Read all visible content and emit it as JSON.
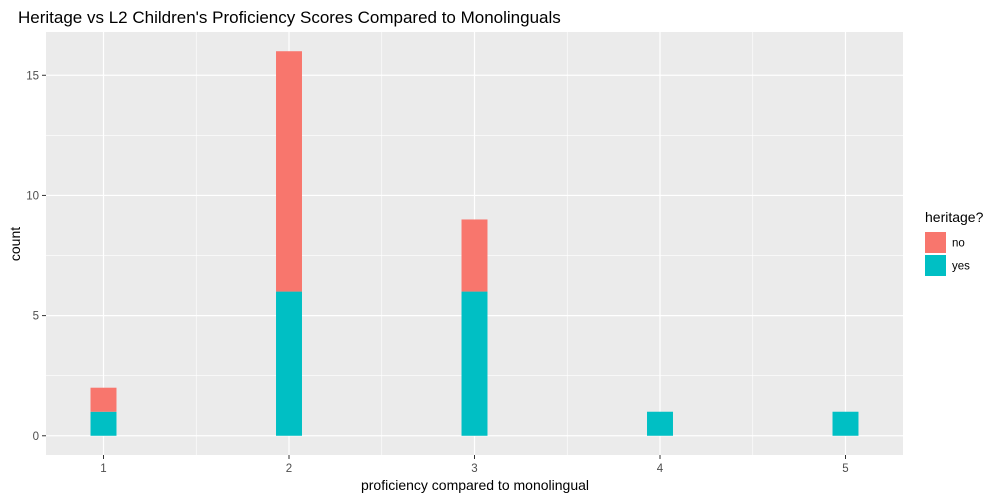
{
  "chart_data": {
    "type": "bar",
    "stacked": true,
    "title": "Heritage vs L2 Children's Proficiency Scores Compared to Monolinguals",
    "xlabel": "proficiency compared to monolingual",
    "ylabel": "count",
    "categories": [
      "1",
      "2",
      "3",
      "4",
      "5"
    ],
    "x_values": [
      1,
      2,
      3,
      4,
      5
    ],
    "series": [
      {
        "name": "yes",
        "values": [
          1,
          6,
          6,
          1,
          1
        ],
        "color": "#00BFC4"
      },
      {
        "name": "no",
        "values": [
          1,
          10,
          3,
          0,
          0
        ],
        "color": "#F8766D"
      }
    ],
    "xlim": [
      0.69,
      5.31
    ],
    "ylim": [
      -0.8,
      16.8
    ],
    "yticks": [
      0,
      5,
      10,
      15
    ],
    "xticks": [
      1,
      2,
      3,
      4,
      5
    ],
    "bar_width": 0.14,
    "legend": {
      "title": "heritage?",
      "position": "right",
      "entries": [
        {
          "label": "no",
          "color": "#F8766D"
        },
        {
          "label": "yes",
          "color": "#00BFC4"
        }
      ]
    },
    "grid": true,
    "panel_background": "#EBEBEB",
    "grid_color": "#FFFFFF"
  }
}
